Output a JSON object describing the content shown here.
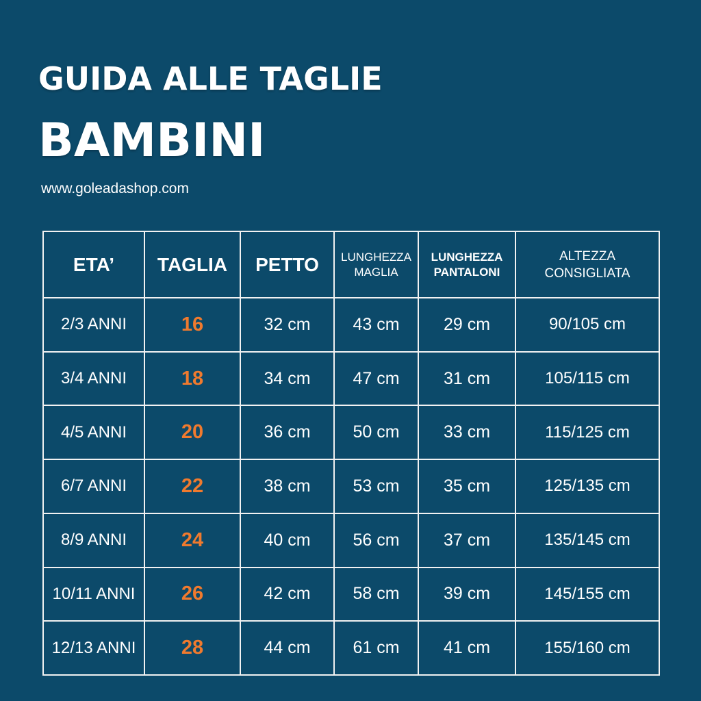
{
  "title_line1": "GUIDA ALLE TAGLIE",
  "title_line2": "BAMBINI",
  "website": "www.goleadashop.com",
  "accent_color": "#f07a2e",
  "background_color": "#0c4a6a",
  "table": {
    "headers": {
      "age": "ETA’",
      "size": "TAGLIA",
      "chest": "PETTO",
      "shirt_length_1": "LUNGHEZZA",
      "shirt_length_2": "MAGLIA",
      "pants_length_1": "LUNGHEZZA",
      "pants_length_2": "PANTALONI",
      "height_1": "ALTEZZA",
      "height_2": "CONSIGLIATA"
    },
    "rows": [
      {
        "age": "2/3 ANNI",
        "size": "16",
        "chest": "32 cm",
        "shirt": "43 cm",
        "pants": "29 cm",
        "height": "90/105 cm"
      },
      {
        "age": "3/4 ANNI",
        "size": "18",
        "chest": "34 cm",
        "shirt": "47 cm",
        "pants": "31 cm",
        "height": "105/115 cm"
      },
      {
        "age": "4/5 ANNI",
        "size": "20",
        "chest": "36 cm",
        "shirt": "50 cm",
        "pants": "33 cm",
        "height": "115/125 cm"
      },
      {
        "age": "6/7 ANNI",
        "size": "22",
        "chest": "38 cm",
        "shirt": "53 cm",
        "pants": "35 cm",
        "height": "125/135 cm"
      },
      {
        "age": "8/9 ANNI",
        "size": "24",
        "chest": "40 cm",
        "shirt": "56 cm",
        "pants": "37 cm",
        "height": "135/145 cm"
      },
      {
        "age": "10/11 ANNI",
        "size": "26",
        "chest": "42 cm",
        "shirt": "58 cm",
        "pants": "39 cm",
        "height": "145/155 cm"
      },
      {
        "age": "12/13 ANNI",
        "size": "28",
        "chest": "44 cm",
        "shirt": "61 cm",
        "pants": "41 cm",
        "height": "155/160 cm"
      }
    ]
  }
}
